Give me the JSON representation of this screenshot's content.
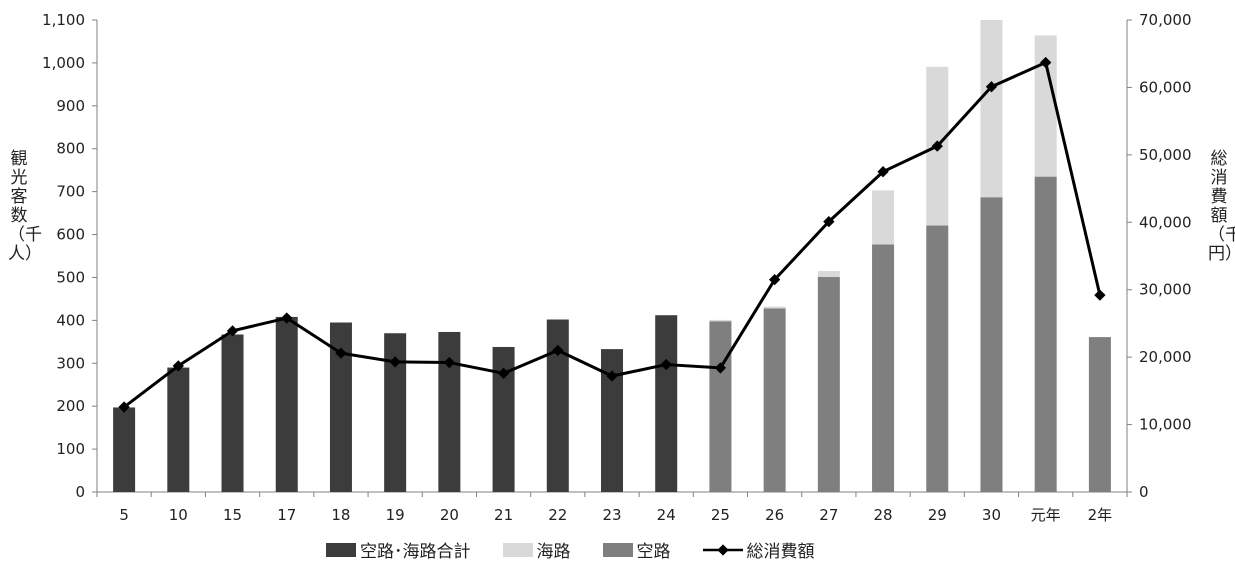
{
  "chart_data": {
    "type": "bar",
    "categories": [
      "5",
      "10",
      "15",
      "17",
      "18",
      "19",
      "20",
      "21",
      "22",
      "23",
      "24",
      "25",
      "26",
      "27",
      "28",
      "29",
      "30",
      "元年",
      "2年"
    ],
    "series": [
      {
        "name": "空路･海路合計",
        "kind": "bar",
        "color": "#3c3c3c",
        "values": [
          197,
          290,
          367,
          408,
          395,
          370,
          373,
          338,
          402,
          333,
          412,
          null,
          null,
          null,
          null,
          null,
          null,
          null,
          null
        ]
      },
      {
        "name": "空路",
        "kind": "bar",
        "color": "#7f7f7f",
        "values": [
          null,
          null,
          null,
          null,
          null,
          null,
          null,
          null,
          null,
          null,
          null,
          398,
          428,
          501,
          577,
          621,
          687,
          735,
          361
        ]
      },
      {
        "name": "海路",
        "kind": "bar-stacked",
        "color": "#d9d9d9",
        "values": [
          null,
          null,
          null,
          null,
          null,
          null,
          null,
          null,
          null,
          null,
          null,
          3,
          4,
          14,
          126,
          370,
          413,
          329,
          null
        ]
      },
      {
        "name": "総消費額",
        "kind": "line",
        "axis": "right",
        "color": "#000000",
        "values": [
          12600,
          18700,
          23900,
          25800,
          20600,
          19300,
          19200,
          17600,
          21000,
          17200,
          18900,
          18400,
          31500,
          40100,
          47500,
          51300,
          60100,
          63700,
          29200
        ]
      }
    ],
    "ylabel": "観光客数（千人）",
    "y2label": "総消費額（千円）",
    "ylim": [
      0,
      1100
    ],
    "yticks": [
      "0",
      "100",
      "200",
      "300",
      "400",
      "500",
      "600",
      "700",
      "800",
      "900",
      "1,000",
      "1,100"
    ],
    "y2lim": [
      0,
      70000
    ],
    "y2ticks": [
      "0",
      "10,000",
      "20,000",
      "30,000",
      "40,000",
      "50,000",
      "60,000",
      "70,000"
    ],
    "grid": false,
    "legend_position": "bottom"
  },
  "legend": [
    "空路･海路合計",
    "海路",
    "空路",
    "総消費額"
  ]
}
